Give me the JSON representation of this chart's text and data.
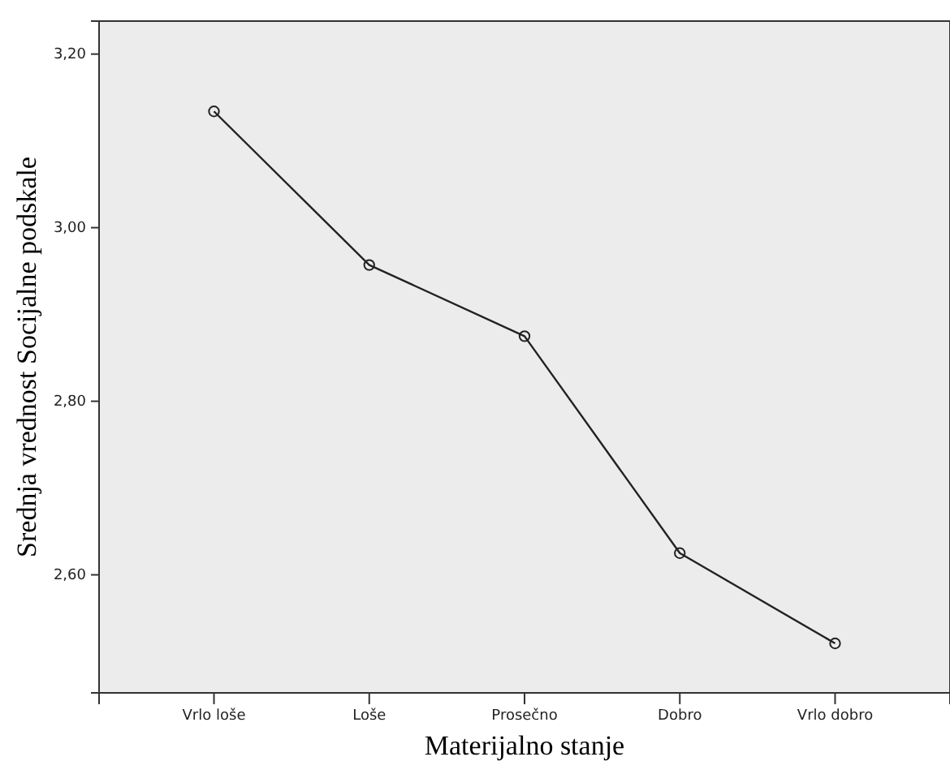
{
  "chart_data": {
    "type": "line",
    "xlabel": "Materijalno stanje",
    "ylabel": "Srednja vrednost Socijalne podskale",
    "categories": [
      "Vrlo loše",
      "Loše",
      "Prosečno",
      "Dobro",
      "Vrlo dobro"
    ],
    "series": [
      {
        "color": "#222222",
        "values": [
          3.134,
          2.957,
          2.875,
          2.625,
          2.521
        ]
      }
    ],
    "ylim": [
      2.464,
      3.238
    ],
    "yticks": [
      {
        "value": 2.6,
        "label": "2,60"
      },
      {
        "value": 2.8,
        "label": "2,80"
      },
      {
        "value": 3.0,
        "label": "3,00"
      },
      {
        "value": 3.2,
        "label": "3,20"
      }
    ],
    "marker": "circle"
  }
}
